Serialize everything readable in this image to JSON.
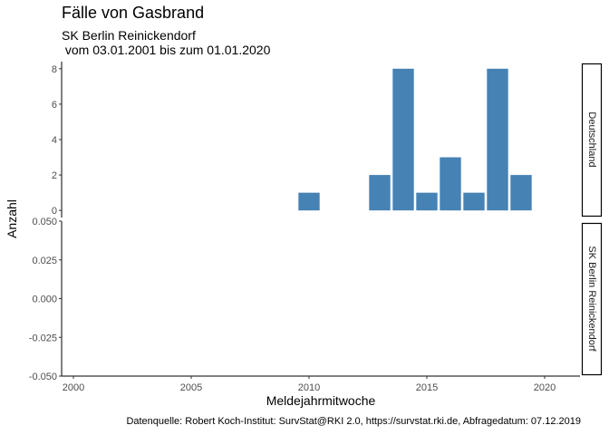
{
  "header": {
    "title": "Fälle von Gasbrand",
    "subtitle_line1": "SK Berlin Reinickendorf",
    "subtitle_line2": " vom 03.01.2001 bis zum 01.01.2020"
  },
  "caption": "Datenquelle: Robert Koch-Institut: SurvStat@RKI 2.0, https://survstat.rki.de, Abfragedatum: 07.12.2019",
  "colors": {
    "bar": "#4682b4",
    "axis": "#000000",
    "strip_border": "#000000"
  },
  "chart_data": {
    "type": "bar",
    "xlabel": "Meldejahrmitwoche",
    "ylabel": "Anzahl",
    "x_ticks": [
      2000,
      2005,
      2010,
      2015,
      2020
    ],
    "xlim": [
      1999.5,
      2021.5
    ],
    "panels": [
      {
        "strip": "Deutschland",
        "ylim": [
          -0.4,
          8.4
        ],
        "y_ticks": [
          0,
          2,
          4,
          6,
          8
        ],
        "y_tick_labels": [
          "0",
          "2",
          "4",
          "6",
          "8"
        ],
        "x": [
          2010,
          2013,
          2014,
          2015,
          2016,
          2017,
          2018,
          2019
        ],
        "values": [
          1,
          2,
          8,
          1,
          3,
          1,
          8,
          2
        ]
      },
      {
        "strip": "SK Berlin Reinickendorf",
        "ylim": [
          -0.05,
          0.05
        ],
        "y_ticks": [
          -0.05,
          -0.025,
          0,
          0.025,
          0.05
        ],
        "y_tick_labels": [
          "-0.050",
          "-0.025",
          "0.000",
          "0.025",
          "0.050"
        ],
        "x": [],
        "values": []
      }
    ]
  }
}
